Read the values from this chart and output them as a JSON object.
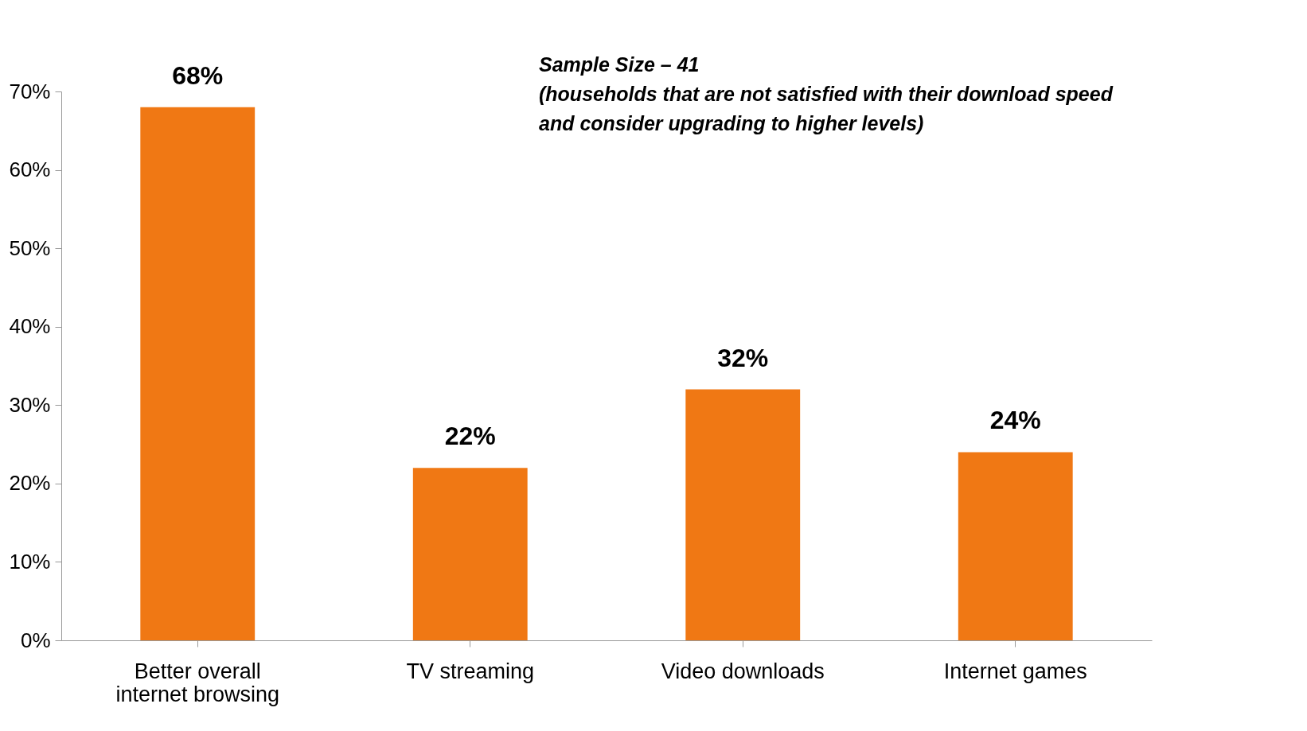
{
  "chart_data": {
    "type": "bar",
    "categories": [
      "Better overall internet browsing",
      "TV streaming",
      "Video downloads",
      "Internet games"
    ],
    "values": [
      68,
      22,
      32,
      24
    ],
    "value_labels": [
      "68%",
      "22%",
      "32%",
      "24%"
    ],
    "color": "#f07814",
    "ylim": [
      0,
      70
    ],
    "yticks": [
      {
        "value": 0,
        "label": "0%"
      },
      {
        "value": 10,
        "label": "10%"
      },
      {
        "value": 20,
        "label": "20%"
      },
      {
        "value": 30,
        "label": "30%"
      },
      {
        "value": 40,
        "label": "40%"
      },
      {
        "value": 50,
        "label": "50%"
      },
      {
        "value": 60,
        "label": "60%"
      },
      {
        "value": 70,
        "label": "70%"
      }
    ],
    "annotations": [
      "Sample Size – 41",
      "(households that are not satisfied with their download speed and consider upgrading to higher levels)"
    ],
    "grid": false
  }
}
